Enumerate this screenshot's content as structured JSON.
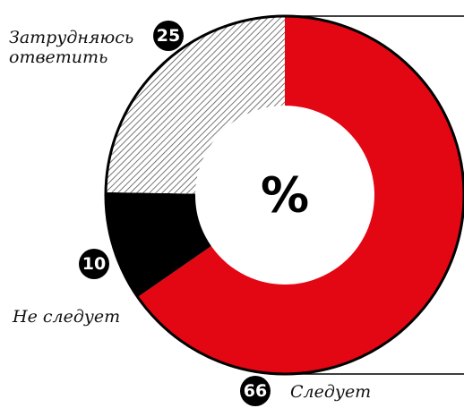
{
  "chart_data": {
    "type": "donut",
    "center_label": "%",
    "categories": [
      "Следует",
      "Не следует",
      "Затрудняюсь ответить"
    ],
    "values": [
      66,
      10,
      25
    ],
    "colors": [
      "#e30613",
      "#000000",
      "#555555"
    ],
    "hatch": [
      false,
      false,
      true
    ]
  }
}
